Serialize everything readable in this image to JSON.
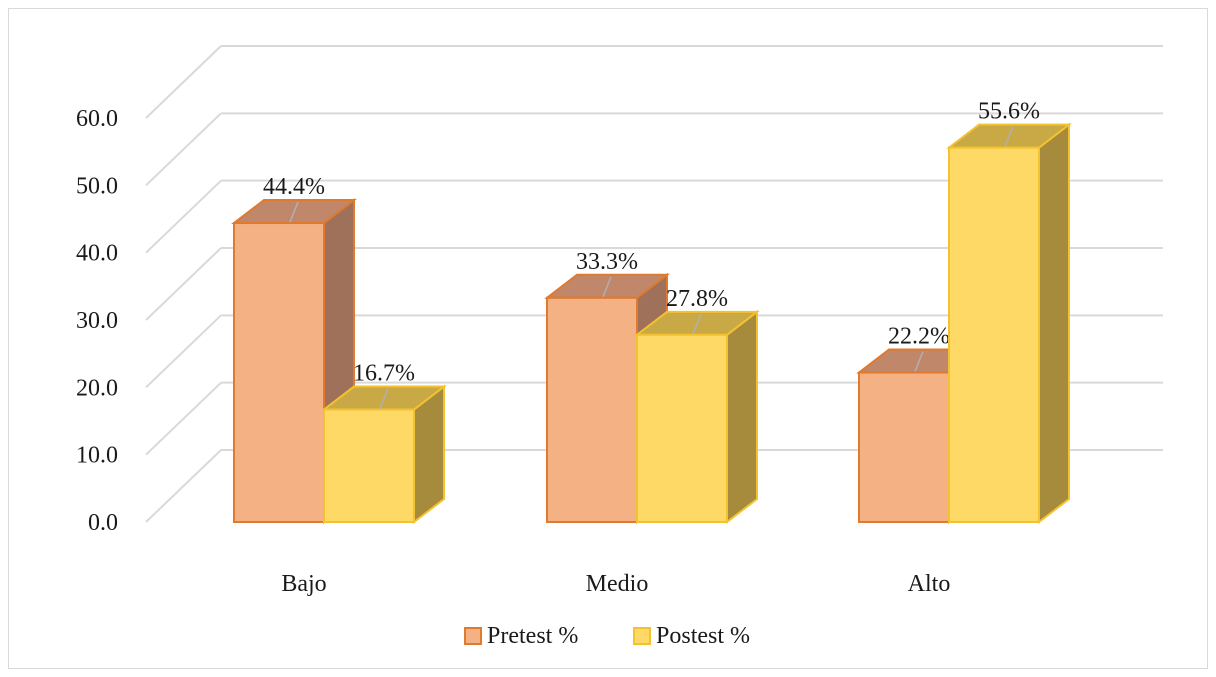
{
  "chart_data": {
    "type": "bar",
    "categories": [
      "Bajo",
      "Medio",
      "Alto"
    ],
    "series": [
      {
        "name": "Pretest %",
        "values": [
          44.4,
          33.3,
          22.2
        ],
        "labels": [
          "44.4%",
          "33.3%",
          "22.2%"
        ]
      },
      {
        "name": "Postest %",
        "values": [
          16.7,
          27.8,
          55.6
        ],
        "labels": [
          "16.7%",
          "27.8%",
          "55.6%"
        ]
      }
    ],
    "yticks": [
      "0.0",
      "10.0",
      "20.0",
      "30.0",
      "40.0",
      "50.0",
      "60.0"
    ],
    "ylim": [
      0,
      60
    ],
    "grid": true,
    "legend": "bottom",
    "three_d": true
  },
  "colors": {
    "pretest_front": "#F4B183",
    "pretest_side": "#A0715A",
    "pretest_top": "#C0876A",
    "pretest_edge": "#E07A2E",
    "postest_front": "#FFD966",
    "postest_side": "#A68B3C",
    "postest_top": "#C9A846",
    "postest_edge": "#F2C230",
    "grid": "#d9d9d9"
  }
}
